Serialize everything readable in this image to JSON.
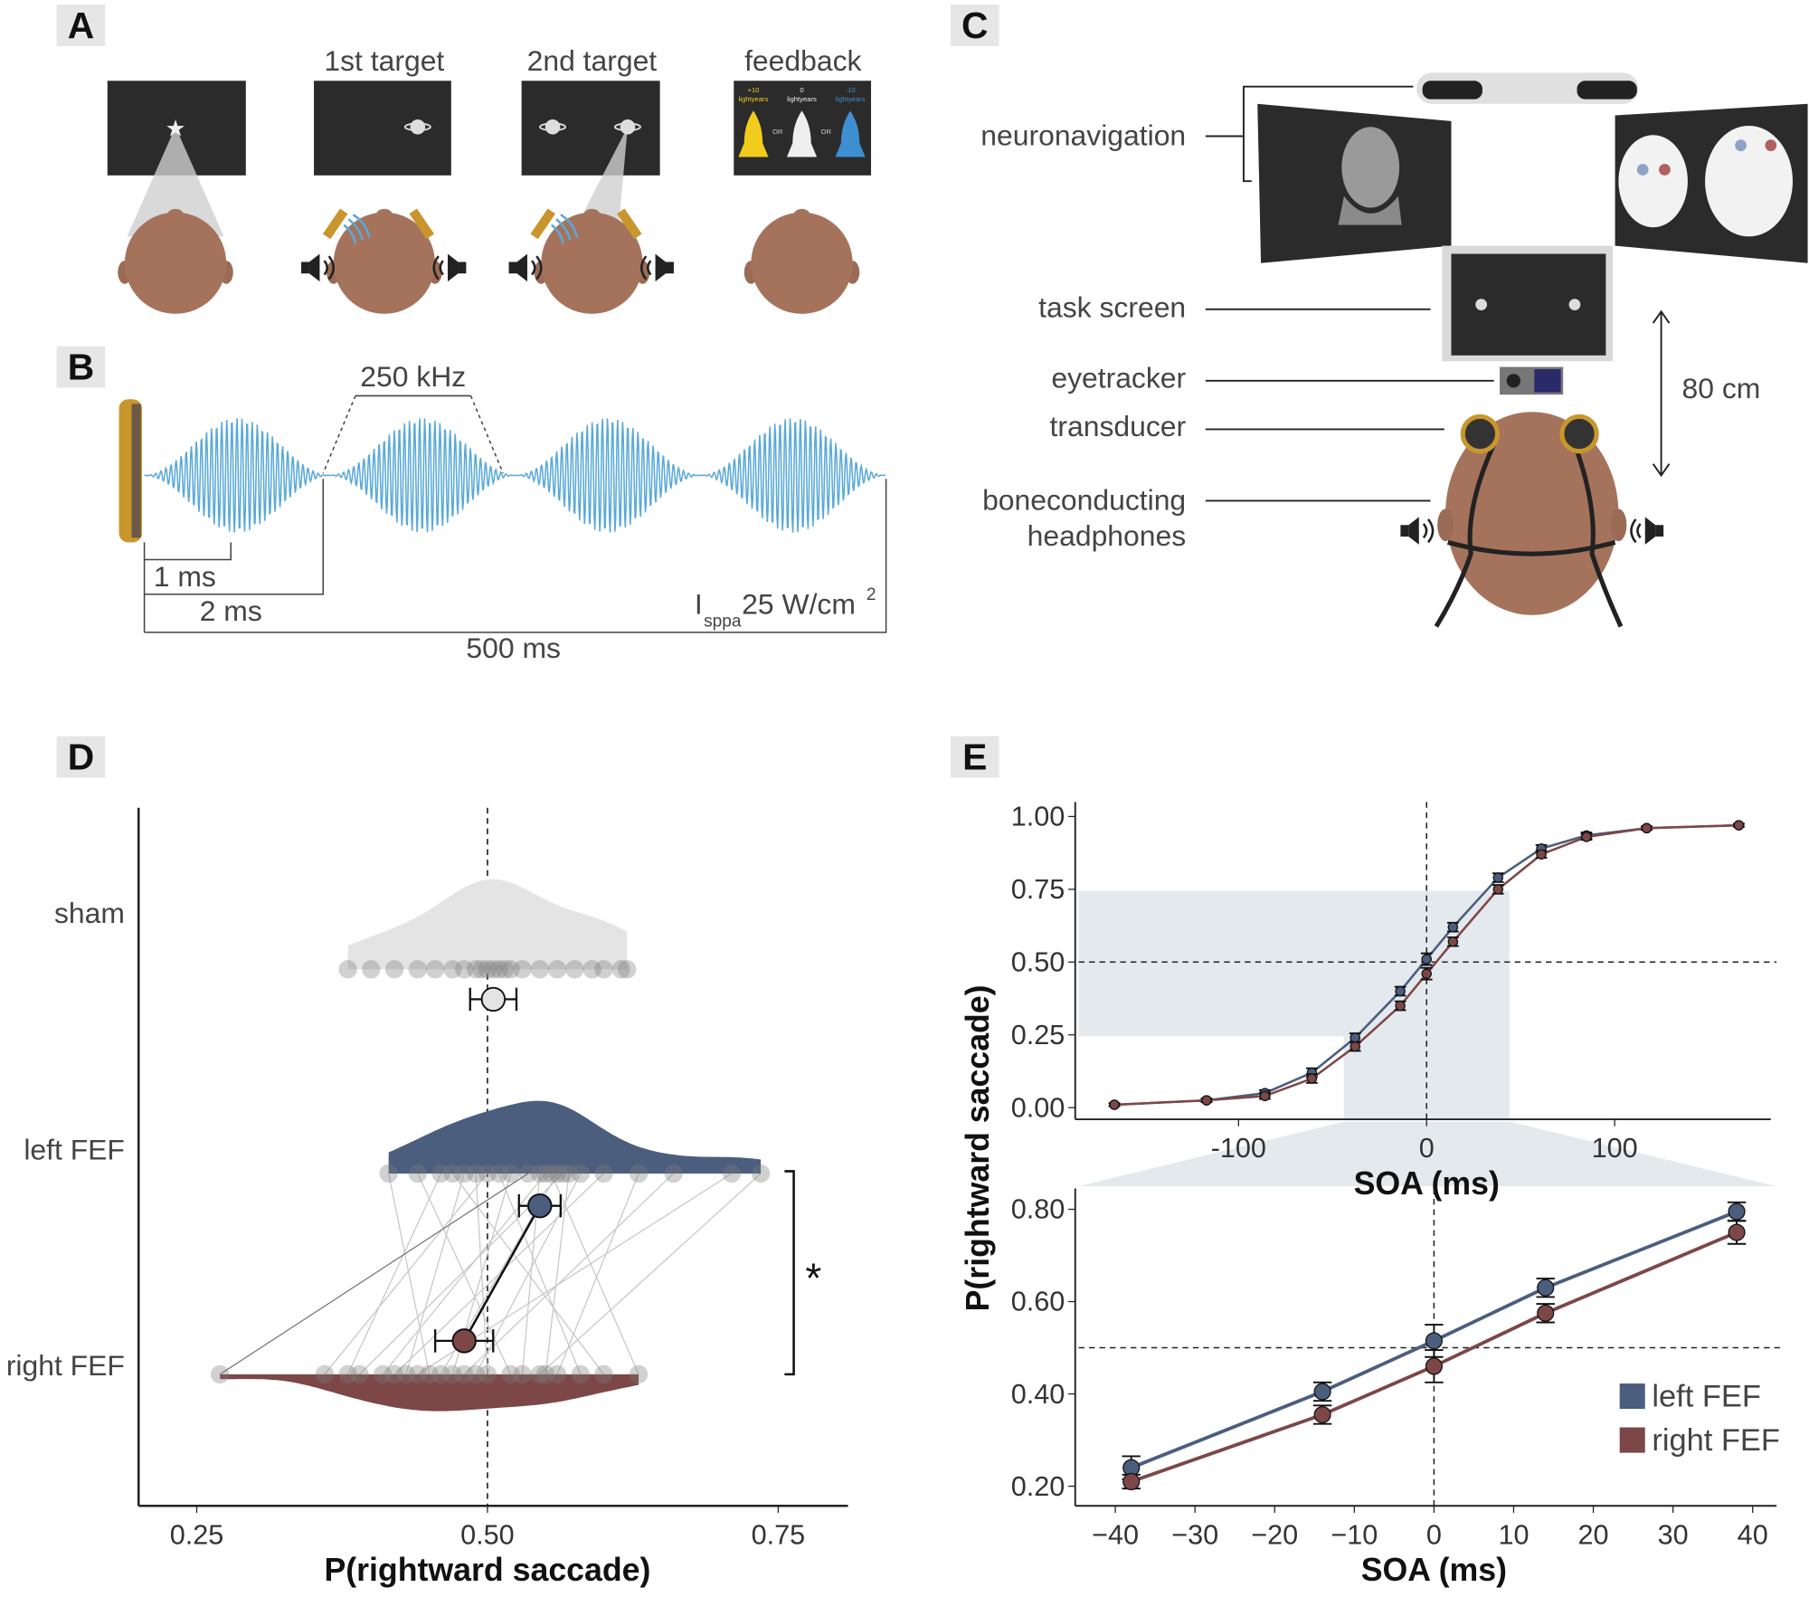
{
  "panel_a": {
    "label": "A",
    "screens": [
      "1st target",
      "2nd target",
      "feedback"
    ],
    "feedback_options": [
      {
        "value": "+10",
        "unit": "lightyears"
      },
      {
        "value": "0",
        "unit": "lightyears"
      },
      {
        "value": "-10",
        "unit": "lightyears"
      }
    ],
    "or": [
      "OR",
      "OR"
    ]
  },
  "panel_b": {
    "label": "B",
    "frequency": "250 kHz",
    "durations": [
      "1 ms",
      "2 ms",
      "500 ms"
    ],
    "intensity": {
      "symbol": "I",
      "subscript": "sppa",
      "value": "25 W/cm",
      "superscript": "2"
    }
  },
  "panel_c": {
    "label": "C",
    "parts": [
      "neuronavigation",
      "task screen",
      "eyetracker",
      "transducer",
      "boneconducting",
      "headphones"
    ],
    "distance": "80 cm"
  },
  "chart_data": [
    {
      "type": "raincloud",
      "panel": "D",
      "xlabel": "P(rightward saccade)",
      "xlim": [
        0.2,
        0.81
      ],
      "xticks": [
        0.25,
        {
          "value": 0.5,
          "label": "0.50"
        },
        0.75
      ],
      "refline": 0.5,
      "categories": [
        "sham",
        "left FEF",
        "right FEF"
      ],
      "series": [
        {
          "color": "#e4e4e4",
          "points": [
            0.38,
            0.4,
            0.42,
            0.44,
            0.455,
            0.47,
            0.48,
            0.49,
            0.495,
            0.5,
            0.505,
            0.51,
            0.515,
            0.52,
            0.53,
            0.545,
            0.56,
            0.575,
            0.59,
            0.6,
            0.615,
            0.62
          ],
          "mean": 0.505,
          "error": 0.01
        },
        {
          "color": "#4b5e7e",
          "points": [
            0.415,
            0.44,
            0.46,
            0.47,
            0.48,
            0.49,
            0.5,
            0.51,
            0.52,
            0.535,
            0.545,
            0.55,
            0.555,
            0.56,
            0.565,
            0.57,
            0.58,
            0.6,
            0.63,
            0.66,
            0.71,
            0.735
          ],
          "mean": 0.545,
          "error": 0.008
        },
        {
          "color": "#7d4747",
          "points": [
            0.45,
            0.52,
            0.38,
            0.6,
            0.43,
            0.5,
            0.36,
            0.58,
            0.47,
            0.27,
            0.53,
            0.41,
            0.63,
            0.46,
            0.39,
            0.55,
            0.49,
            0.42,
            0.56,
            0.48,
            0.44,
            0.545
          ],
          "mean": 0.48,
          "error": 0.015
        }
      ],
      "paired_lines": true,
      "significance": "*"
    },
    {
      "type": "line",
      "panel": "E",
      "xlabel": "SOA (ms)",
      "ylabel": "P(rightward saccade)",
      "x": [
        -166,
        -117,
        -86,
        -61,
        -38,
        -14,
        0,
        14,
        38,
        61,
        85,
        117,
        166
      ],
      "series": [
        {
          "color": "#4b5e7e",
          "values": [
            0.01,
            0.025,
            0.05,
            0.12,
            0.24,
            0.4,
            0.51,
            0.62,
            0.79,
            0.89,
            0.935,
            0.96,
            0.97
          ],
          "errors": [
            0.005,
            0.006,
            0.01,
            0.015,
            0.015,
            0.015,
            0.02,
            0.015,
            0.015,
            0.012,
            0.01,
            0.006,
            0.005
          ]
        },
        {
          "color": "#7d4747",
          "values": [
            0.01,
            0.025,
            0.04,
            0.1,
            0.21,
            0.35,
            0.46,
            0.57,
            0.75,
            0.87,
            0.93,
            0.96,
            0.97
          ],
          "errors": [
            0.005,
            0.006,
            0.01,
            0.015,
            0.015,
            0.015,
            0.02,
            0.015,
            0.015,
            0.012,
            0.01,
            0.006,
            0.005
          ]
        }
      ],
      "xlim": [
        -185,
        183
      ],
      "ylim": [
        -0.04,
        1.05
      ],
      "xticks": [
        -100,
        0,
        100
      ],
      "yticks": [
        {
          "value": 0,
          "label": "0.00"
        },
        0.25,
        {
          "value": 0.5,
          "label": "0.50"
        },
        0.75,
        {
          "value": 1,
          "label": "1.00"
        }
      ],
      "hline": 0.5,
      "vline": 0,
      "zoom": {
        "xlim": [
          -44,
          44
        ],
        "ylim": [
          0.245,
          0.745
        ]
      }
    },
    {
      "type": "line",
      "xlabel": "SOA (ms)",
      "x": [
        -38,
        -14,
        0,
        14,
        38
      ],
      "series": [
        {
          "name": "left FEF",
          "color": "#4b5e7e",
          "values": [
            0.24,
            0.405,
            0.515,
            0.63,
            0.795
          ],
          "errors": [
            0.025,
            0.02,
            0.035,
            0.02,
            0.02
          ]
        },
        {
          "name": "right FEF",
          "color": "#7d4747",
          "values": [
            0.21,
            0.355,
            0.46,
            0.575,
            0.75
          ],
          "errors": [
            0.015,
            0.02,
            0.035,
            0.02,
            0.025
          ]
        }
      ],
      "xlim": [
        -44.6,
        43
      ],
      "ylim": [
        0.1575,
        0.845
      ],
      "xticks": [
        {
          "value": -40,
          "label": "−40"
        },
        {
          "value": -30,
          "label": "−30"
        },
        {
          "value": -20,
          "label": "−20"
        },
        {
          "value": -10,
          "label": "−10"
        },
        0,
        10,
        20,
        30,
        40
      ],
      "yticks": [
        {
          "value": 0.2,
          "label": "0.20"
        },
        {
          "value": 0.4,
          "label": "0.40"
        },
        {
          "value": 0.6,
          "label": "0.60"
        },
        {
          "value": 0.8,
          "label": "0.80"
        }
      ],
      "hline": 0.5,
      "vline": 0,
      "legend": "lower right"
    }
  ]
}
